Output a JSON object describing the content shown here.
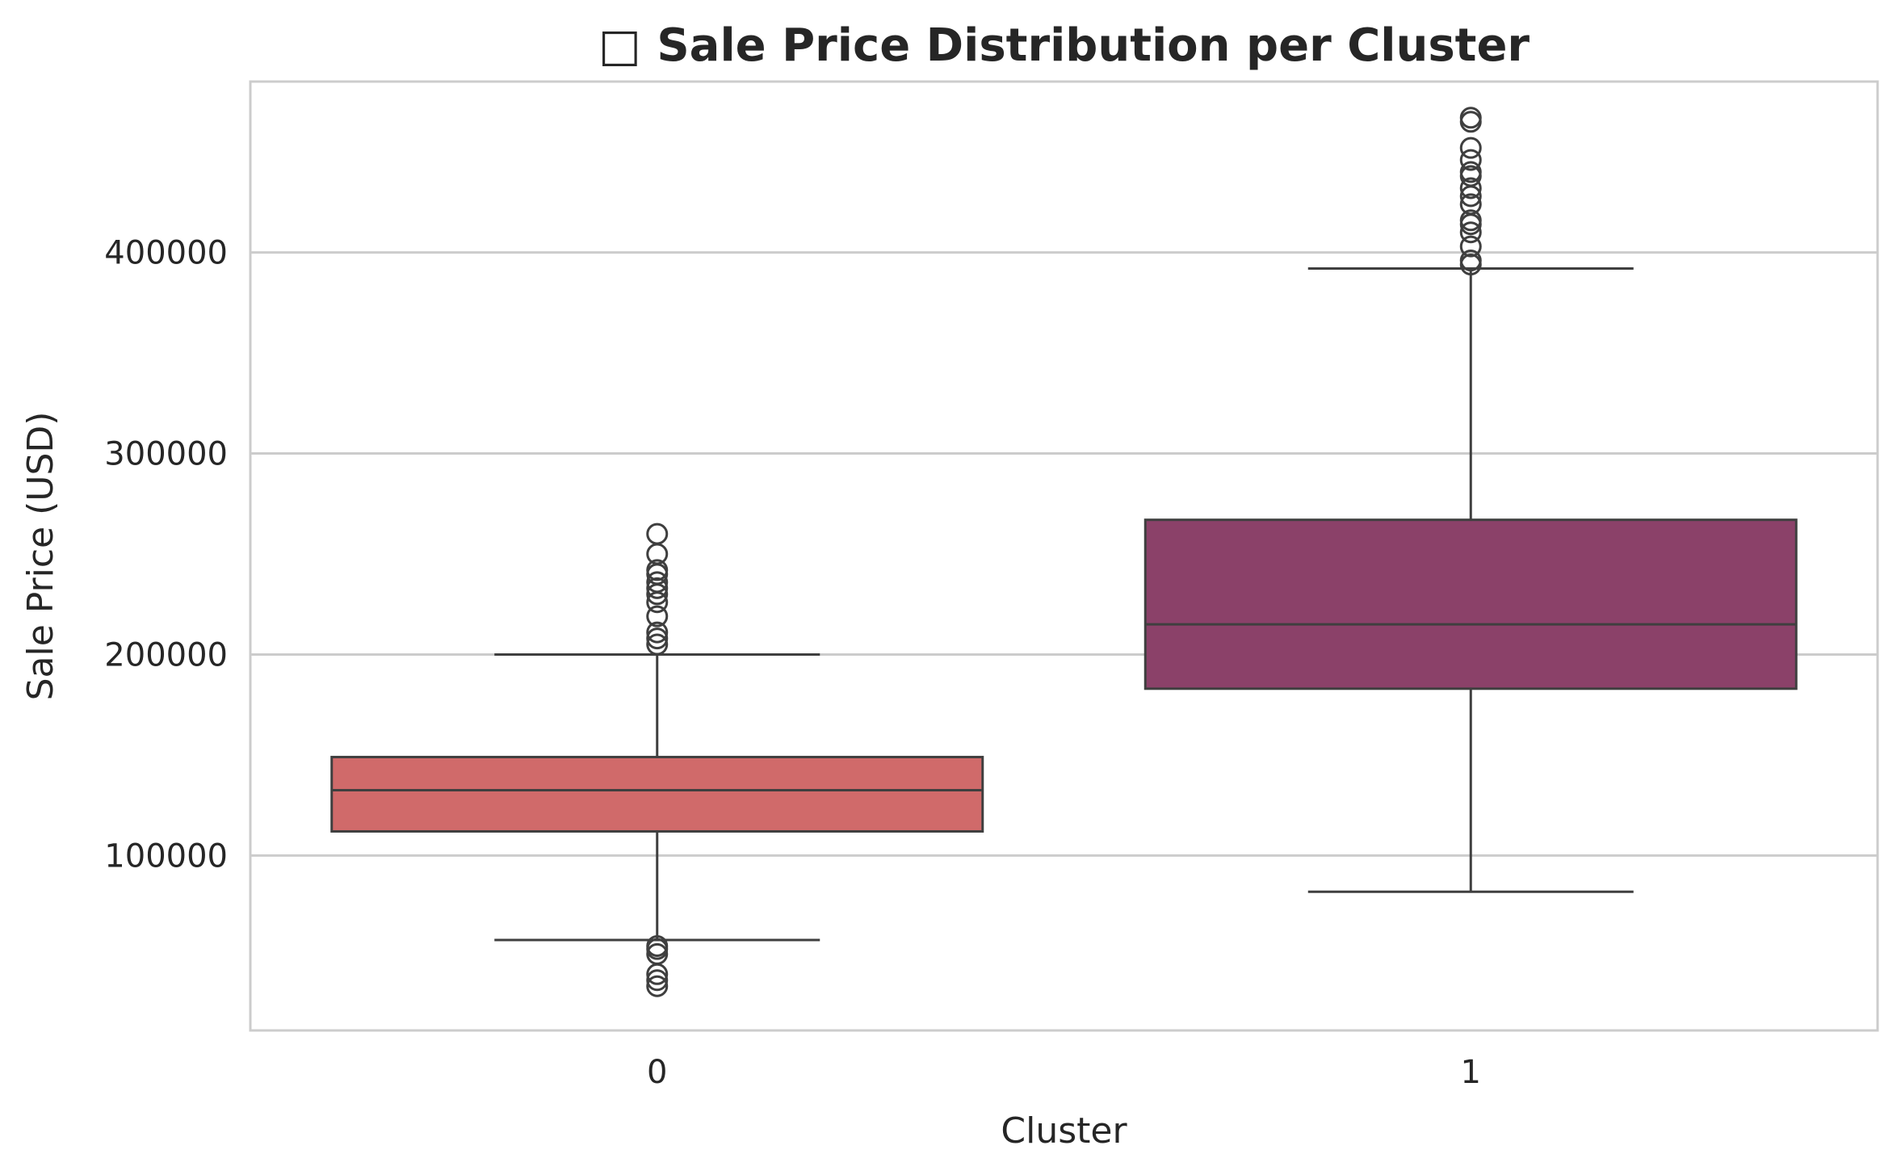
{
  "chart_data": {
    "type": "box",
    "title": "□ Sale Price Distribution per Cluster",
    "xlabel": "Cluster",
    "ylabel": "Sale Price (USD)",
    "categories": [
      "0",
      "1"
    ],
    "ylim": [
      13000,
      485000
    ],
    "yticks": [
      100000,
      200000,
      300000,
      400000
    ],
    "ytick_labels": [
      "100000",
      "200000",
      "300000",
      "400000"
    ],
    "grid": "horizontal",
    "boxes": [
      {
        "category": "0",
        "whisker_low": 58000,
        "q1": 112000,
        "median": 132500,
        "q3": 149000,
        "whisker_high": 200000,
        "color": "#d06a6a",
        "outliers": [
          35000,
          38000,
          41000,
          51000,
          53500,
          55000,
          205000,
          208000,
          211000,
          219000,
          226000,
          230000,
          233000,
          236000,
          240000,
          242000,
          250000,
          260000
        ]
      },
      {
        "category": "1",
        "whisker_low": 82000,
        "q1": 183000,
        "median": 215000,
        "q3": 267000,
        "whisker_high": 392000,
        "color": "#8b4169",
        "outliers": [
          394000,
          396000,
          403000,
          410000,
          414000,
          416000,
          424000,
          428000,
          432000,
          438000,
          440000,
          446000,
          452000,
          465000,
          467000
        ]
      }
    ]
  }
}
